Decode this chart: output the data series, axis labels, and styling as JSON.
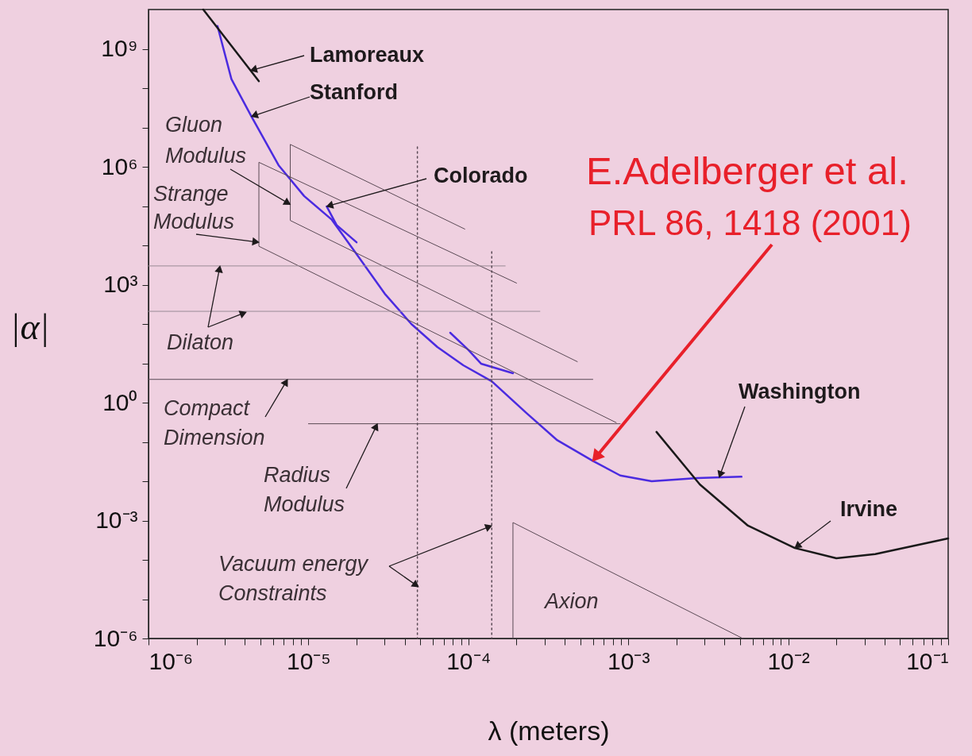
{
  "chart_data": {
    "type": "line",
    "xlabel": "λ (meters)",
    "ylabel": "|α|",
    "log": "xy",
    "grid": false,
    "xlim": [
      1e-06,
      0.1
    ],
    "ylim": [
      1e-06,
      10000000000.0
    ],
    "xticks": [
      {
        "value": 1e-06,
        "label": "10⁻⁶"
      },
      {
        "value": 2e-06,
        "label": null
      },
      {
        "value": 3e-06,
        "label": null
      },
      {
        "value": 4e-06,
        "label": null
      },
      {
        "value": 5e-06,
        "label": null
      },
      {
        "value": 6e-06,
        "label": null
      },
      {
        "value": 7e-06,
        "label": null
      },
      {
        "value": 8e-06,
        "label": null
      },
      {
        "value": 9e-06,
        "label": null
      },
      {
        "value": 1e-05,
        "label": "10⁻⁵"
      },
      {
        "value": 2e-05,
        "label": null
      },
      {
        "value": 3e-05,
        "label": null
      },
      {
        "value": 4e-05,
        "label": null
      },
      {
        "value": 5e-05,
        "label": null
      },
      {
        "value": 6e-05,
        "label": null
      },
      {
        "value": 7e-05,
        "label": null
      },
      {
        "value": 8e-05,
        "label": null
      },
      {
        "value": 9e-05,
        "label": null
      },
      {
        "value": 0.0001,
        "label": "10⁻⁴"
      },
      {
        "value": 0.0002,
        "label": null
      },
      {
        "value": 0.0003,
        "label": null
      },
      {
        "value": 0.0004,
        "label": null
      },
      {
        "value": 0.0005,
        "label": null
      },
      {
        "value": 0.0006,
        "label": null
      },
      {
        "value": 0.0007,
        "label": null
      },
      {
        "value": 0.0008,
        "label": null
      },
      {
        "value": 0.0009,
        "label": null
      },
      {
        "value": 0.001,
        "label": "10⁻³"
      },
      {
        "value": 0.002,
        "label": null
      },
      {
        "value": 0.003,
        "label": null
      },
      {
        "value": 0.004,
        "label": null
      },
      {
        "value": 0.005,
        "label": null
      },
      {
        "value": 0.006,
        "label": null
      },
      {
        "value": 0.007,
        "label": null
      },
      {
        "value": 0.008,
        "label": null
      },
      {
        "value": 0.009,
        "label": null
      },
      {
        "value": 0.01,
        "label": "10⁻²"
      },
      {
        "value": 0.02,
        "label": null
      },
      {
        "value": 0.03,
        "label": null
      },
      {
        "value": 0.04,
        "label": null
      },
      {
        "value": 0.05,
        "label": null
      },
      {
        "value": 0.06,
        "label": null
      },
      {
        "value": 0.07,
        "label": null
      },
      {
        "value": 0.08,
        "label": null
      },
      {
        "value": 0.09,
        "label": null
      },
      {
        "value": 0.1,
        "label": "10⁻¹"
      }
    ],
    "yticks": [
      {
        "value": 1e-06,
        "label": "10⁻⁶"
      },
      {
        "value": 1e-05,
        "label": null
      },
      {
        "value": 0.0001,
        "label": null
      },
      {
        "value": 0.001,
        "label": "10⁻³"
      },
      {
        "value": 0.01,
        "label": null
      },
      {
        "value": 0.1,
        "label": null
      },
      {
        "value": 1,
        "label": "10⁰"
      },
      {
        "value": 10,
        "label": null
      },
      {
        "value": 100,
        "label": null
      },
      {
        "value": 1000.0,
        "label": "10³"
      },
      {
        "value": 10000.0,
        "label": null
      },
      {
        "value": 100000.0,
        "label": null
      },
      {
        "value": 1000000.0,
        "label": "10⁶"
      },
      {
        "value": 10000000.0,
        "label": null
      },
      {
        "value": 100000000.0,
        "label": null
      },
      {
        "value": 1000000000.0,
        "label": "10⁹"
      }
    ],
    "series": [
      {
        "type": "line",
        "color": "#4b2be0",
        "line_style": "solid",
        "x": [
          2.7e-06,
          3.3e-06,
          4.4e-06,
          6.5e-06,
          9.4e-06,
          1.4e-05,
          2e-05,
          3e-05,
          4.4e-05,
          6.4e-05,
          9.3e-05,
          0.00014,
          0.00023,
          0.00036,
          0.0006,
          0.00089,
          0.0014,
          0.0027,
          0.0051
        ],
        "values": [
          3800000000.0,
          170000000.0,
          19000000.0,
          1100000.0,
          180000.0,
          45000.0,
          6000.0,
          590,
          100,
          26,
          8.9,
          3.5,
          0.55,
          0.11,
          0.033,
          0.014,
          0.01,
          0.012,
          0.013
        ]
      },
      {
        "type": "line",
        "color": "#4b2be0",
        "line_style": "solid",
        "x": [
          1.3e-05,
          1.5e-05,
          2e-05
        ],
        "values": [
          98000.0,
          33000.0,
          12000.0
        ]
      },
      {
        "type": "line",
        "color": "#4b2be0",
        "line_style": "solid",
        "x": [
          7.7e-05,
          0.0001,
          0.00012,
          0.00019
        ],
        "values": [
          60,
          22,
          9.8,
          5.6
        ]
      },
      {
        "type": "line",
        "color": "#1a1a1a",
        "line_style": "solid",
        "x": [
          2.2e-06,
          4.9e-06
        ],
        "values": [
          10000000000.0,
          150000000.0
        ]
      },
      {
        "type": "line",
        "color": "#1a1a1a",
        "line_style": "solid",
        "x": [
          0.0015,
          0.0028,
          0.0056,
          0.011,
          0.02,
          0.035,
          0.1
        ],
        "values": [
          0.18,
          0.0083,
          0.00074,
          0.0002,
          0.00011,
          0.00014,
          0.00035
        ]
      },
      {
        "type": "line",
        "color": "#5a4a55",
        "line_style": "solid",
        "x": [
          9.5e-05,
          7.7e-06,
          7.7e-06,
          0.00048
        ],
        "values": [
          26000.0,
          3700000.0,
          43000.0,
          11
        ]
      },
      {
        "type": "line",
        "color": "#5a4a55",
        "line_style": "solid",
        "x": [
          0.0002,
          4.9e-06,
          4.9e-06,
          0.00084
        ],
        "values": [
          1100.0,
          1300000.0,
          9500.0,
          0.31
        ]
      },
      {
        "type": "line",
        "color": "#9a8a95",
        "line_style": "solid",
        "x": [
          1e-06,
          0.00017
        ],
        "values": [
          3000.0,
          3000.0
        ]
      },
      {
        "type": "line",
        "color": "#9a8a95",
        "line_style": "solid",
        "x": [
          1e-06,
          0.00028
        ],
        "values": [
          210,
          210
        ]
      },
      {
        "type": "line",
        "color": "#5a4a55",
        "line_style": "solid",
        "x": [
          1e-06,
          0.0006
        ],
        "values": [
          3.9,
          3.9
        ]
      },
      {
        "type": "line",
        "color": "#5a4a55",
        "line_style": "solid",
        "x": [
          1e-05,
          0.00089
        ],
        "values": [
          0.29,
          0.29
        ]
      },
      {
        "type": "line",
        "color": "#5a4a55",
        "line_style": "dotted",
        "x": [
          4.8e-05,
          4.8e-05
        ],
        "values": [
          3200000.0,
          1e-06
        ]
      },
      {
        "type": "line",
        "color": "#5a4a55",
        "line_style": "dotted",
        "x": [
          0.00014,
          0.00014
        ],
        "values": [
          6900.0,
          1e-06
        ]
      },
      {
        "type": "line",
        "color": "#5a4a55",
        "line_style": "solid",
        "x": [
          0.00019,
          0.00019,
          0.0052
        ],
        "values": [
          1e-06,
          0.00089,
          1e-06
        ]
      }
    ],
    "annotations": [
      {
        "text": "Lamoreaux",
        "x": 4.35e-06,
        "y": 280000000.0
      },
      {
        "text": "Stanford",
        "x": 4.4e-06,
        "y": 19000000.0
      },
      {
        "text": "Gluon\nModulus",
        "x": 7.7e-06,
        "y": 110000.0
      },
      {
        "text": "Strange\nModulus",
        "x": 4.9e-06,
        "y": 12000.0
      },
      {
        "text": "Colorado",
        "x": 1.3e-05,
        "y": 98000.0
      },
      {
        "text": "Dilaton",
        "x": 2.8e-06,
        "y": 3000.0
      },
      {
        "text": "Compact\nDimension",
        "x": 7.4e-06,
        "y": 3.9
      },
      {
        "text": "Radius\nModulus",
        "x": 2.7e-05,
        "y": 0.29
      },
      {
        "text": "Vacuum energy\nConstraints",
        "x": 0.00014,
        "y": 0.00074
      },
      "Axion",
      {
        "text": "Washington",
        "x": 0.0037,
        "y": 0.0125
      },
      {
        "text": "Irvine",
        "x": 0.011,
        "y": 0.0002
      },
      "E.Adelberger et al.",
      {
        "text": "PRL 86, 1418 (2001)",
        "x": 0.0006,
        "y": 0.033
      }
    ]
  }
}
